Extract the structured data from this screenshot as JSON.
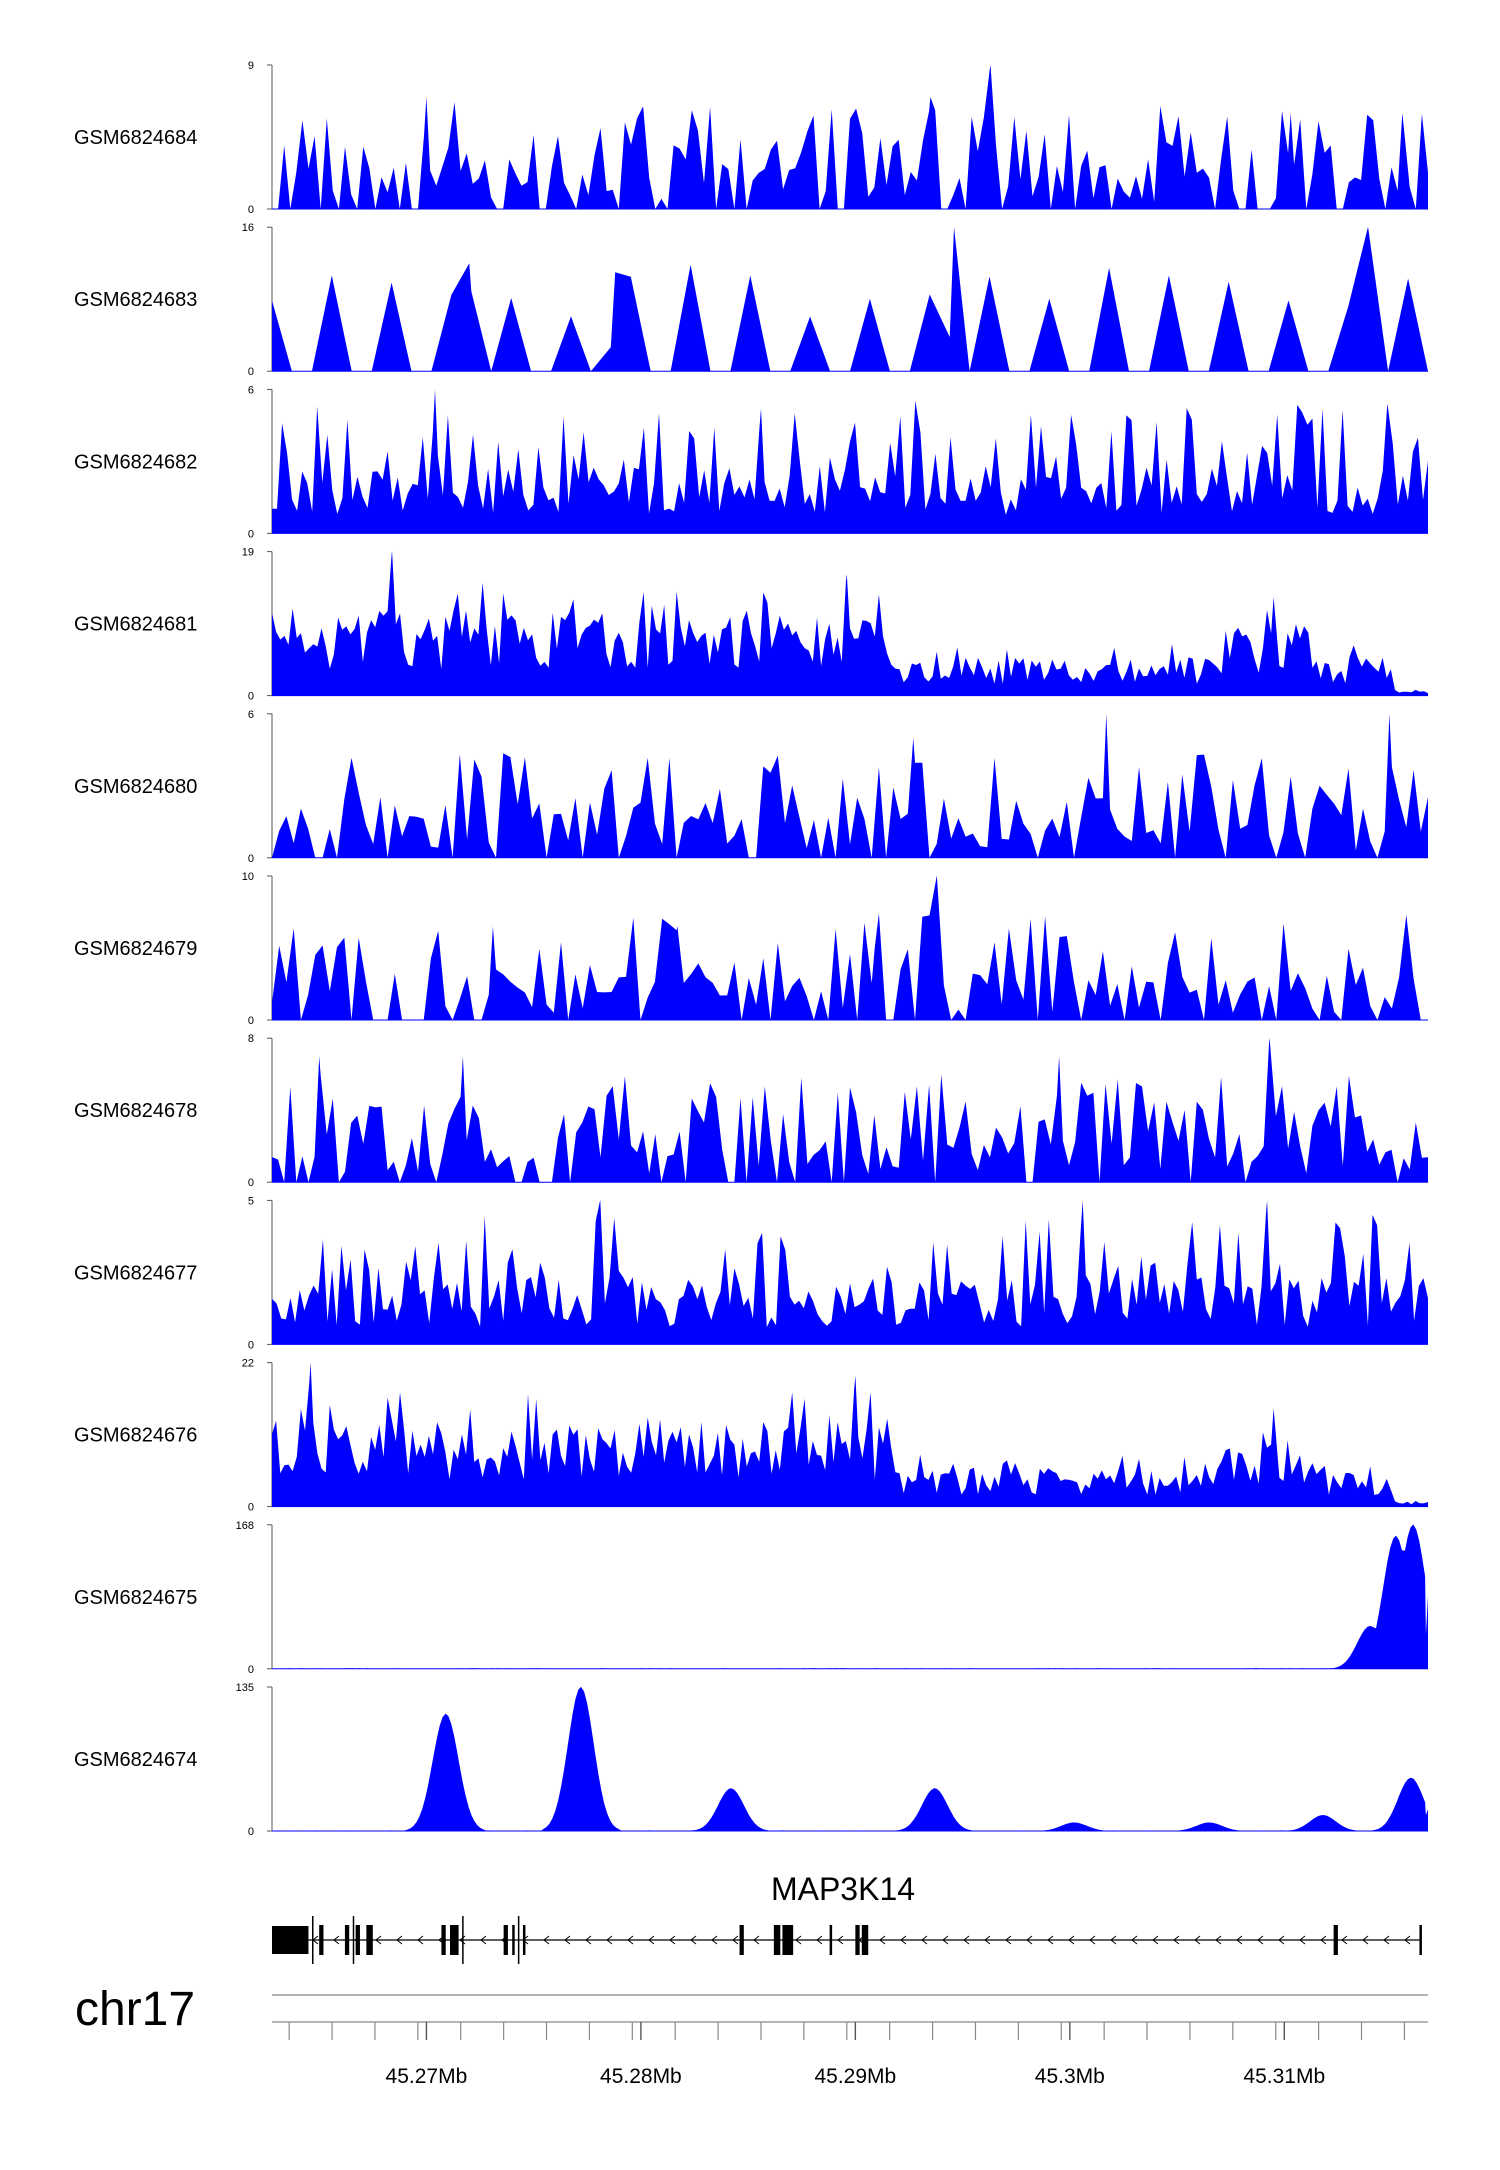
{
  "chart_data": {
    "type": "area",
    "title": "",
    "chromosome": "chr17",
    "gene": {
      "name": "MAP3K14",
      "strand": "-",
      "start_mb": 45.2628,
      "end_mb": 45.3163,
      "exons_mb": [
        [
          45.2628,
          45.2645
        ],
        [
          45.265,
          45.2652
        ],
        [
          45.2662,
          45.2664
        ],
        [
          45.2667,
          45.2669
        ],
        [
          45.2672,
          45.2675
        ],
        [
          45.2707,
          45.2709
        ],
        [
          45.2711,
          45.2715
        ],
        [
          45.2736,
          45.2738
        ],
        [
          45.274,
          45.2741
        ],
        [
          45.2745,
          45.2746
        ],
        [
          45.2846,
          45.2848
        ],
        [
          45.2862,
          45.2865
        ],
        [
          45.2866,
          45.2871
        ],
        [
          45.2888,
          45.2889
        ],
        [
          45.29,
          45.2902
        ],
        [
          45.2903,
          45.2906
        ],
        [
          45.3123,
          45.3125
        ],
        [
          45.3163,
          45.3164
        ]
      ]
    },
    "xlabel": "",
    "x_range_mb": [
      45.2628,
      45.3167
    ],
    "x_tick_labels": [
      "45.27Mb",
      "45.28Mb",
      "45.29Mb",
      "45.3Mb",
      "45.31Mb"
    ],
    "x_tick_values_mb": [
      45.27,
      45.28,
      45.29,
      45.3,
      45.31
    ],
    "x_minor_ticks_mb": [
      45.2636,
      45.2656,
      45.2676,
      45.2696,
      45.2716,
      45.2736,
      45.2756,
      45.2776,
      45.2796,
      45.2816,
      45.2836,
      45.2856,
      45.2876,
      45.2896,
      45.2916,
      45.2936,
      45.2956,
      45.2976,
      45.2996,
      45.3016,
      45.3036,
      45.3056,
      45.3076,
      45.3096,
      45.3116,
      45.3136,
      45.3156
    ],
    "series": [
      {
        "name": "GSM6824684",
        "ymin": 0,
        "ymax": 9,
        "ylim_label": "9",
        "zero_label": "0",
        "color": "#0000FF",
        "pattern": "sparse_spiky",
        "density": 190,
        "base_level": 3,
        "peaks": [
          [
            45.27,
            7
          ],
          [
            45.2935,
            7
          ],
          [
            45.2963,
            9
          ],
          [
            45.3103,
            6
          ],
          [
            45.3155,
            6
          ]
        ]
      },
      {
        "name": "GSM6824683",
        "ymin": 0,
        "ymax": 16,
        "ylim_label": "16",
        "zero_label": "0",
        "color": "#0000FF",
        "pattern": "triangles",
        "density": 58,
        "base_level": 7,
        "peaks": [
          [
            45.272,
            12
          ],
          [
            45.2788,
            11
          ],
          [
            45.2946,
            16
          ],
          [
            45.3139,
            16
          ]
        ]
      },
      {
        "name": "GSM6824682",
        "ymin": 0,
        "ymax": 6,
        "ylim_label": "6",
        "zero_label": "0",
        "color": "#0000FF",
        "pattern": "dense_spiky",
        "density": 230,
        "base_level": 3,
        "peaks": [
          [
            45.2704,
            6
          ],
          [
            45.2856,
            5.2
          ],
          [
            45.2928,
            5.5
          ],
          [
            45.3148,
            5.4
          ]
        ]
      },
      {
        "name": "GSM6824681",
        "ymin": 0,
        "ymax": 19,
        "ylim_label": "19",
        "zero_label": "0",
        "color": "#0000FF",
        "pattern": "broad_dense",
        "density": 280,
        "base_level": 8,
        "peaks": [
          [
            45.2684,
            19
          ],
          [
            45.2896,
            16
          ],
          [
            45.3095,
            13
          ]
        ]
      },
      {
        "name": "GSM6824680",
        "ymin": 0,
        "ymax": 6,
        "ylim_label": "6",
        "zero_label": "0",
        "color": "#0000FF",
        "pattern": "sparse_spiky",
        "density": 160,
        "base_level": 2.5,
        "peaks": [
          [
            45.3017,
            6
          ],
          [
            45.3149,
            6
          ],
          [
            45.2927,
            5
          ]
        ]
      },
      {
        "name": "GSM6824679",
        "ymin": 0,
        "ymax": 10,
        "ylim_label": "10",
        "zero_label": "0",
        "color": "#0000FF",
        "pattern": "sparse_spiky",
        "density": 160,
        "base_level": 2.5,
        "peaks": [
          [
            45.2938,
            10
          ],
          [
            45.2731,
            6.5
          ],
          [
            45.2817,
            6.5
          ],
          [
            45.2909,
            5
          ]
        ]
      },
      {
        "name": "GSM6824678",
        "ymin": 0,
        "ymax": 8,
        "ylim_label": "8",
        "zero_label": "0",
        "color": "#0000FF",
        "pattern": "sparse_spiky",
        "density": 190,
        "base_level": 2.5,
        "peaks": [
          [
            45.3093,
            8
          ],
          [
            45.265,
            7
          ],
          [
            45.2717,
            7
          ],
          [
            45.2995,
            7
          ]
        ]
      },
      {
        "name": "GSM6824677",
        "ymin": 0,
        "ymax": 5,
        "ylim_label": "5",
        "zero_label": "0",
        "color": "#0000FF",
        "pattern": "dense_spiky",
        "density": 250,
        "base_level": 2.2,
        "peaks": [
          [
            45.2781,
            5
          ],
          [
            45.3092,
            5
          ],
          [
            45.3006,
            5
          ]
        ]
      },
      {
        "name": "GSM6824676",
        "ymin": 0,
        "ymax": 22,
        "ylim_label": "22",
        "zero_label": "0",
        "color": "#0000FF",
        "pattern": "broad_dense",
        "density": 280,
        "base_level": 9,
        "peaks": [
          [
            45.2646,
            22
          ],
          [
            45.29,
            20
          ],
          [
            45.3095,
            15
          ]
        ]
      },
      {
        "name": "GSM6824675",
        "ymin": 0,
        "ymax": 168,
        "ylim_label": "168",
        "zero_label": "0",
        "color": "#0000FF",
        "pattern": "flat_with_peaks",
        "density": 400,
        "base_level": 1,
        "peaks": [
          [
            45.314,
            50
          ],
          [
            45.3152,
            155
          ],
          [
            45.316,
            168
          ],
          [
            45.3166,
            40
          ]
        ]
      },
      {
        "name": "GSM6824674",
        "ymin": 0,
        "ymax": 135,
        "ylim_label": "135",
        "zero_label": "0",
        "color": "#0000FF",
        "pattern": "flat_with_peaks",
        "density": 400,
        "base_level": 1,
        "peaks": [
          [
            45.2709,
            110
          ],
          [
            45.2772,
            135
          ],
          [
            45.2842,
            40
          ],
          [
            45.2937,
            40
          ],
          [
            45.3002,
            8
          ],
          [
            45.3065,
            8
          ],
          [
            45.3118,
            15
          ],
          [
            45.3159,
            50
          ],
          [
            45.3166,
            15
          ]
        ]
      }
    ]
  }
}
